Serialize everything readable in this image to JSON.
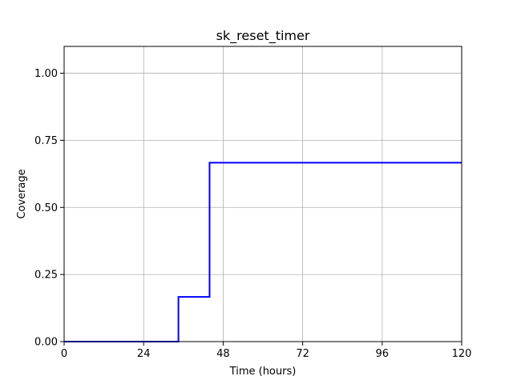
{
  "chart_data": {
    "type": "line",
    "title": "sk_reset_timer",
    "xlabel": "Time (hours)",
    "ylabel": "Coverage",
    "xlim": [
      0,
      120
    ],
    "ylim": [
      0,
      1.1
    ],
    "x_ticks": [
      0,
      24,
      48,
      72,
      96,
      120
    ],
    "y_ticks": [
      0.0,
      0.25,
      0.5,
      0.75,
      1.0
    ],
    "x_tick_labels": [
      "0",
      "24",
      "48",
      "72",
      "96",
      "120"
    ],
    "y_tick_labels": [
      "0.00",
      "0.25",
      "0.50",
      "0.75",
      "1.00"
    ],
    "grid": true,
    "line_color": "#0000ff",
    "series": [
      {
        "x": [
          0,
          34.5,
          34.5,
          43.9,
          43.9,
          120
        ],
        "values": [
          0.0,
          0.0,
          0.1667,
          0.1667,
          0.6667,
          0.6667
        ]
      }
    ]
  }
}
